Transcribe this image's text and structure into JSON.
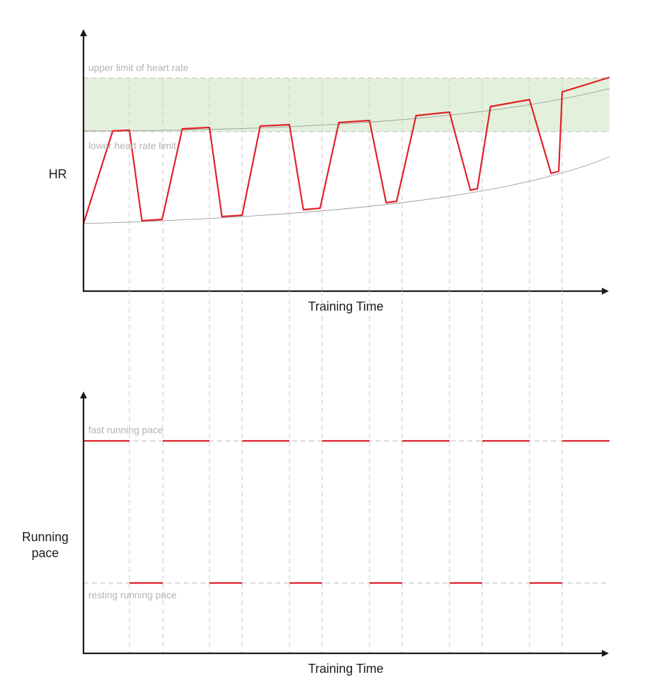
{
  "colors": {
    "hr_line": "#e01f26",
    "pace_line": "#e01f26",
    "target_zone_fill": "#e3f0dc",
    "dashed_guides": "#c8c8c8",
    "trend_curves": "#9a9a9a",
    "axes": "#1a1a1a"
  },
  "hr_chart": {
    "ylabel": "HR",
    "xlabel": "Training Time",
    "upper_limit_label": "upper limit of heart rate",
    "lower_limit_label": "lower heart rate limit"
  },
  "pace_chart": {
    "ylabel_line1": "Running",
    "ylabel_line2": "pace",
    "xlabel": "Training Time",
    "fast_label": "fast running pace",
    "resting_label": "resting running pace"
  }
}
